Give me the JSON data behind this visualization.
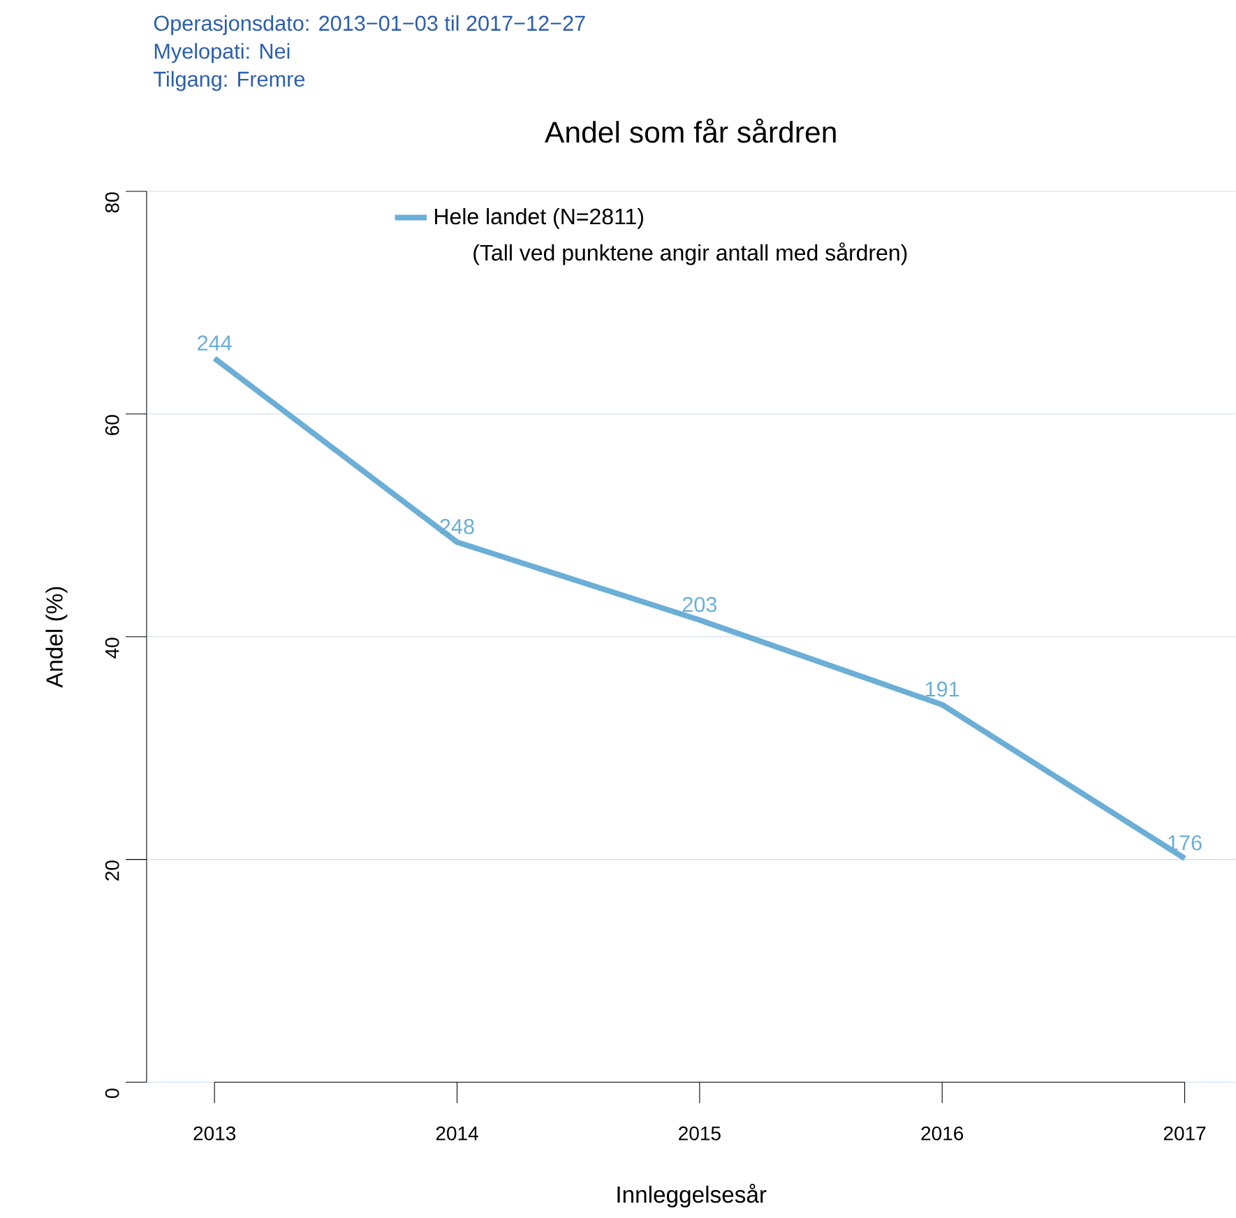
{
  "chart_data": {
    "type": "line",
    "title": "Andel som får sårdren",
    "annotations": [
      "Operasjonsdato: 2013−01−03 til 2017−12−27",
      "Myelopati: Nei",
      "Tilgang: Fremre",
      "(Tall ved punktene angir antall med sårdren)",
      {
        "text": "244",
        "x": "2013",
        "y": 65
      },
      {
        "text": "248",
        "x": "2014",
        "y": 48.5
      },
      {
        "text": "203",
        "x": "2015",
        "y": 41.5
      },
      {
        "text": "191",
        "x": "2016",
        "y": 33.9
      },
      {
        "text": "176",
        "x": "2017",
        "y": 20.1
      }
    ],
    "xlabel": "Innleggelsesår",
    "ylabel": "Andel (%)",
    "categories": [
      "2013",
      "2014",
      "2015",
      "2016",
      "2017"
    ],
    "series": [
      {
        "name": "Hele landet (N=2811)",
        "color": "#6baed6",
        "values": [
          65,
          48.5,
          41.5,
          33.9,
          20.1
        ]
      }
    ],
    "ylim": [
      0,
      80
    ],
    "yticks": [
      0,
      20,
      40,
      60,
      80
    ],
    "grid": "y",
    "legend": "top"
  }
}
